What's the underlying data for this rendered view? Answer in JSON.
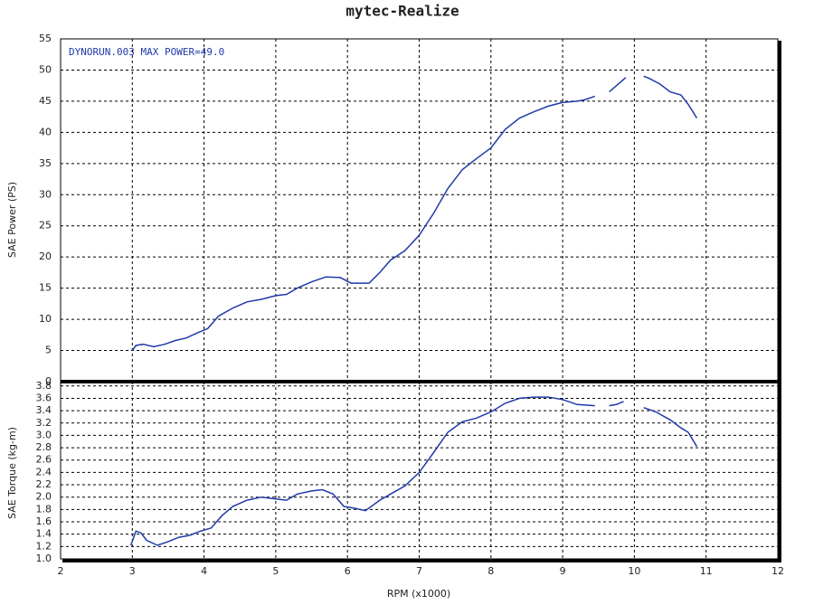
{
  "chart_data": [
    {
      "type": "line",
      "title": "mytec-Realize",
      "annotation": "DYNORUN.003  MAX POWER=49.0",
      "ylabel": "SAE Power (PS)",
      "color": "#1f3aa8",
      "grid": true,
      "xlim": [
        2,
        12
      ],
      "xticks": [
        2,
        3,
        4,
        5,
        6,
        7,
        8,
        9,
        10,
        11,
        12
      ],
      "ylim": [
        0,
        55
      ],
      "yticks": [
        0,
        5,
        10,
        15,
        20,
        25,
        30,
        35,
        40,
        45,
        50,
        55
      ],
      "x": [
        3.0,
        3.05,
        3.15,
        3.3,
        3.45,
        3.6,
        3.75,
        3.9,
        4.05,
        4.2,
        4.4,
        4.6,
        4.8,
        5.0,
        5.15,
        5.3,
        5.5,
        5.7,
        5.9,
        6.05,
        6.3,
        6.45,
        6.6,
        6.8,
        7.0,
        7.2,
        7.4,
        7.6,
        7.8,
        8.0,
        8.2,
        8.4,
        8.6,
        8.8,
        9.0,
        9.2,
        9.3,
        9.45,
        9.55,
        9.65,
        9.75,
        9.88,
        10.0,
        10.13,
        10.2,
        10.35,
        10.5,
        10.65,
        10.75,
        10.87
      ],
      "values": [
        5,
        5.8,
        6,
        5.6,
        6,
        6.6,
        7,
        7.8,
        8.5,
        10.5,
        11.8,
        12.8,
        13.2,
        13.8,
        14,
        15,
        16,
        16.8,
        16.7,
        15.8,
        15.8,
        17.5,
        19.5,
        21,
        23.5,
        27,
        31,
        34,
        35.8,
        37.5,
        40.5,
        42.3,
        43.3,
        44.2,
        44.8,
        45,
        45.2,
        45.8,
        null,
        46.5,
        47.5,
        48.8,
        null,
        49,
        48.7,
        47.8,
        46.5,
        46,
        44.5,
        42.3
      ]
    },
    {
      "type": "line",
      "ylabel": "SAE Torque (kg-m)",
      "xlabel": "RPM (x1000)",
      "color": "#1f3aa8",
      "grid": true,
      "xlim": [
        2,
        12
      ],
      "xticks": [
        2,
        3,
        4,
        5,
        6,
        7,
        8,
        9,
        10,
        11,
        12
      ],
      "ylim": [
        1.0,
        3.87
      ],
      "yticks": [
        {
          "value": 1.0,
          "label": "1.0"
        },
        1.2,
        1.4,
        1.6,
        1.8,
        {
          "value": 2.0,
          "label": "2.0"
        },
        2.2,
        2.4,
        2.6,
        2.8,
        {
          "value": 3.0,
          "label": "3.0"
        },
        3.2,
        3.4,
        3.6,
        3.8
      ],
      "x": [
        2.98,
        3.05,
        3.12,
        3.2,
        3.35,
        3.5,
        3.65,
        3.8,
        3.95,
        4.1,
        4.25,
        4.4,
        4.6,
        4.8,
        5.0,
        5.15,
        5.3,
        5.5,
        5.65,
        5.8,
        5.95,
        6.1,
        6.25,
        6.45,
        6.6,
        6.8,
        7.0,
        7.2,
        7.4,
        7.6,
        7.8,
        8.0,
        8.2,
        8.4,
        8.6,
        8.8,
        9.0,
        9.2,
        9.45,
        9.55,
        9.65,
        9.75,
        9.85,
        10.0,
        10.13,
        10.3,
        10.5,
        10.65,
        10.75,
        10.87
      ],
      "values": [
        1.22,
        1.45,
        1.42,
        1.3,
        1.22,
        1.28,
        1.35,
        1.38,
        1.45,
        1.5,
        1.7,
        1.85,
        1.95,
        2.0,
        1.97,
        1.95,
        2.05,
        2.1,
        2.12,
        2.05,
        1.85,
        1.82,
        1.78,
        1.95,
        2.05,
        2.18,
        2.4,
        2.72,
        3.05,
        3.22,
        3.28,
        3.38,
        3.52,
        3.6,
        3.62,
        3.62,
        3.58,
        3.5,
        3.48,
        null,
        3.48,
        3.5,
        3.55,
        null,
        3.45,
        3.38,
        3.25,
        3.12,
        3.05,
        2.82
      ]
    }
  ]
}
